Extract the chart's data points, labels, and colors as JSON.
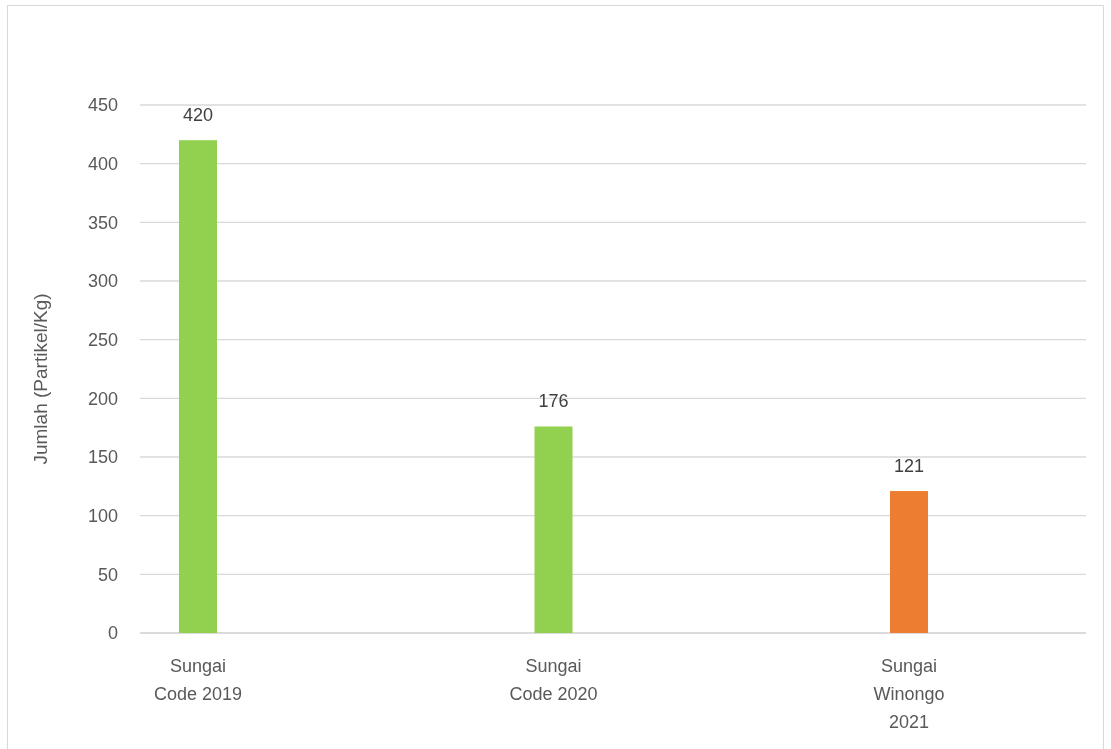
{
  "chart_data": {
    "type": "bar",
    "ylabel": "Jumlah (Partikel/Kg)",
    "categories": [
      "Sungai Code 2019",
      "Sungai Code 2020",
      "Sungai Winongo 2021"
    ],
    "values": [
      420,
      176,
      121
    ],
    "colors": [
      "#92d050",
      "#92d050",
      "#ed7d31"
    ],
    "ylim": [
      0,
      450
    ],
    "yticks": [
      0,
      50,
      100,
      150,
      200,
      250,
      300,
      350,
      400,
      450
    ],
    "grid": "y",
    "data_labels": true
  }
}
